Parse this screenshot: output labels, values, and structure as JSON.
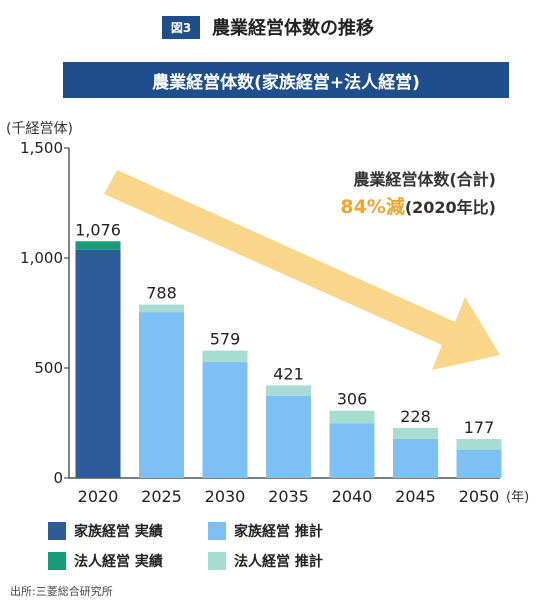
{
  "header": {
    "badge": "図3",
    "title": "農業経営体数の推移"
  },
  "colors": {
    "header_bg": "#1f4e8c",
    "family_actual": "#2e5b9a",
    "corp_actual": "#179b78",
    "family_estimate": "#7cc0f5",
    "corp_estimate": "#a6dcd2",
    "arrow": "#fad27e",
    "accent_text": "#f3a42d"
  },
  "annotation": {
    "line1": "農業経営体数(合計)",
    "percent": "84%減",
    "base": "(2020年比)"
  },
  "chart_data": {
    "type": "bar",
    "stacked": true,
    "title": "農業経営体数(家族経営+法人経営)",
    "ylabel": "(千経営体)",
    "xlabel": "(年)",
    "ylim": [
      0,
      1500
    ],
    "yticks": [
      "0",
      "500",
      "1,000",
      "1,500"
    ],
    "ytick_values": [
      0,
      500,
      1000,
      1500
    ],
    "grid": false,
    "categories": [
      "2020",
      "2025",
      "2030",
      "2035",
      "2040",
      "2045",
      "2050"
    ],
    "totals": [
      1076,
      788,
      579,
      421,
      306,
      228,
      177
    ],
    "total_labels": [
      "1,076",
      "788",
      "579",
      "421",
      "306",
      "228",
      "177"
    ],
    "series": [
      {
        "name": "家族経営",
        "values": [
          1037,
          754,
          527,
          374,
          248,
          178,
          129
        ]
      },
      {
        "name": "法人経営",
        "values": [
          39,
          34,
          52,
          47,
          58,
          50,
          48
        ]
      }
    ],
    "first_year_actual": true,
    "legend": [
      {
        "label": "家族経営 実績",
        "color": "#2e5b9a"
      },
      {
        "label": "家族経営 推計",
        "color": "#7cc0f5"
      },
      {
        "label": "法人経営 実績",
        "color": "#179b78"
      },
      {
        "label": "法人経営 推計",
        "color": "#a6dcd2"
      }
    ],
    "legend_position": "bottom"
  },
  "source": "出所:三菱総合研究所"
}
